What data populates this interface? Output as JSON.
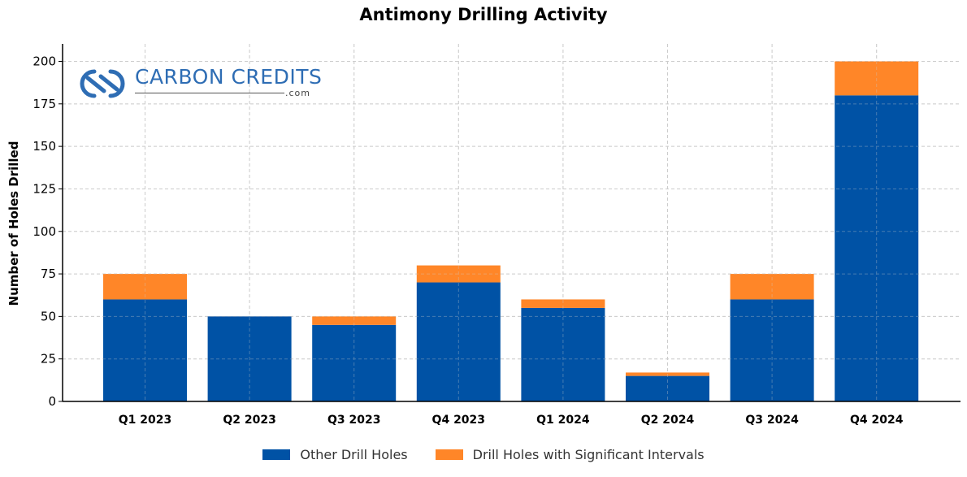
{
  "chart_data": {
    "type": "bar",
    "stacked": true,
    "title": "Antimony Drilling Activity",
    "xlabel": "",
    "ylabel": "Number of Holes Drilled",
    "categories": [
      "Q1 2023",
      "Q2 2023",
      "Q3 2023",
      "Q4 2023",
      "Q1 2024",
      "Q2 2024",
      "Q3 2024",
      "Q4 2024"
    ],
    "series": [
      {
        "name": "Other Drill Holes",
        "color": "#0052a5",
        "values": [
          60,
          50,
          45,
          70,
          55,
          15,
          60,
          180
        ]
      },
      {
        "name": "Drill Holes with Significant Intervals",
        "color": "#ff8628",
        "values": [
          15,
          0,
          5,
          10,
          5,
          2,
          15,
          20
        ]
      }
    ],
    "ylim": [
      0,
      210
    ],
    "yticks": [
      0,
      25,
      50,
      75,
      100,
      125,
      150,
      175,
      200
    ],
    "grid": true,
    "legend_position": "bottom-center"
  },
  "logo": {
    "name": "CARBON CREDITS",
    "suffix": ".com",
    "color": "#2e6db4"
  }
}
